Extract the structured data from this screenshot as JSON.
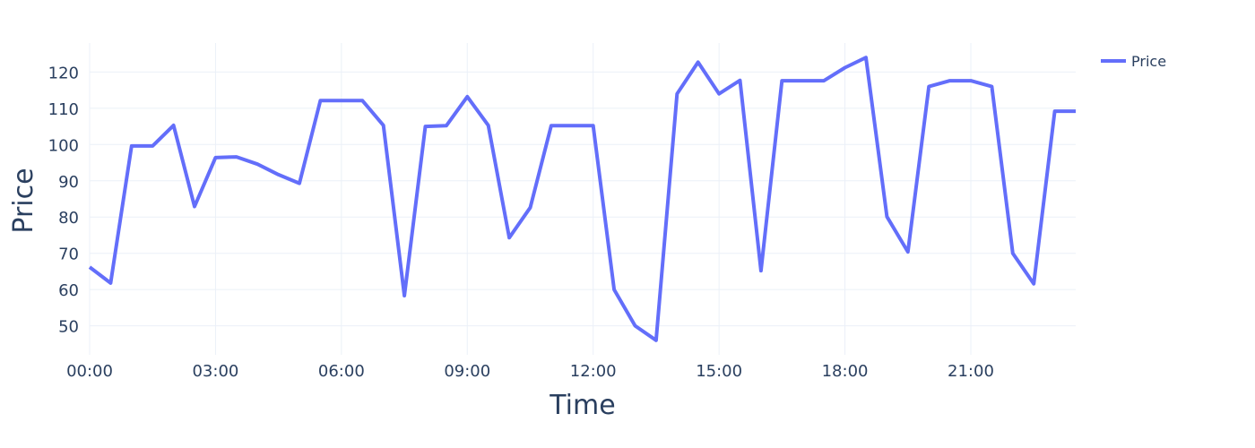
{
  "chart_data": {
    "type": "line",
    "xlabel": "Time",
    "ylabel": "Price",
    "x_ticks": [
      "00:00",
      "03:00",
      "06:00",
      "09:00",
      "12:00",
      "15:00",
      "18:00",
      "21:00"
    ],
    "y_ticks": [
      50,
      60,
      70,
      80,
      90,
      100,
      110,
      120
    ],
    "xlim": [
      "00:00",
      "23:30"
    ],
    "ylim": [
      42,
      128
    ],
    "grid": true,
    "legend_position": "top-right",
    "series": [
      {
        "name": "Price",
        "color": "#636efa",
        "x": [
          "00:00",
          "00:30",
          "01:00",
          "01:30",
          "02:00",
          "02:30",
          "03:00",
          "03:30",
          "04:00",
          "04:30",
          "05:00",
          "05:30",
          "06:00",
          "06:30",
          "07:00",
          "07:30",
          "08:00",
          "08:30",
          "09:00",
          "09:30",
          "10:00",
          "10:30",
          "11:00",
          "11:30",
          "12:00",
          "12:30",
          "13:00",
          "13:30",
          "14:00",
          "14:30",
          "15:00",
          "15:30",
          "16:00",
          "16:30",
          "17:00",
          "17:30",
          "18:00",
          "18:30",
          "19:00",
          "19:30",
          "20:00",
          "20:30",
          "21:00",
          "21:30",
          "22:00",
          "22:30",
          "23:00",
          "23:30"
        ],
        "y": [
          66.2,
          61.8,
          99.6,
          99.6,
          105.3,
          82.9,
          96.4,
          96.6,
          94.6,
          91.7,
          89.3,
          112.1,
          112.1,
          112.1,
          105.3,
          58.3,
          105.0,
          105.2,
          113.2,
          105.3,
          74.3,
          82.6,
          105.2,
          105.2,
          105.2,
          60.0,
          50.0,
          46.0,
          114.0,
          122.7,
          114.0,
          117.7,
          65.2,
          117.6,
          117.6,
          117.6,
          121.2,
          124.0,
          80.1,
          70.4,
          116.0,
          117.6,
          117.6,
          116.0,
          70.0,
          61.6,
          109.2,
          109.2
        ]
      }
    ]
  }
}
